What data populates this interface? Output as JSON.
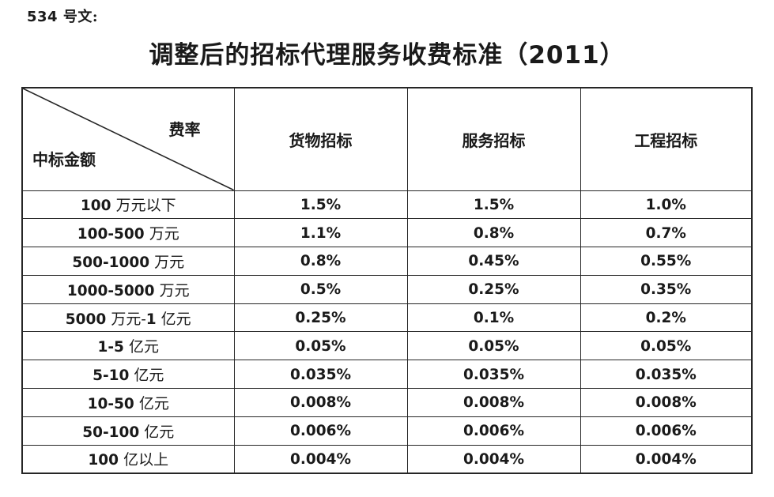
{
  "doc": {
    "doc_number": "534 号文:",
    "title": "调整后的招标代理服务收费标准（2011）"
  },
  "table": {
    "corner": {
      "top_right": "费率",
      "bottom_left": "中标金额"
    },
    "columns": [
      "货物招标",
      "服务招标",
      "工程招标"
    ],
    "rows": [
      {
        "label": "100 万元以下",
        "values": [
          "1.5%",
          "1.5%",
          "1.0%"
        ]
      },
      {
        "label": "100-500 万元",
        "values": [
          "1.1%",
          "0.8%",
          "0.7%"
        ]
      },
      {
        "label": "500-1000 万元",
        "values": [
          "0.8%",
          "0.45%",
          "0.55%"
        ]
      },
      {
        "label": "1000-5000 万元",
        "values": [
          "0.5%",
          "0.25%",
          "0.35%"
        ]
      },
      {
        "label": "5000 万元-1 亿元",
        "values": [
          "0.25%",
          "0.1%",
          "0.2%"
        ]
      },
      {
        "label": "1-5 亿元",
        "values": [
          "0.05%",
          "0.05%",
          "0.05%"
        ]
      },
      {
        "label": "5-10 亿元",
        "values": [
          "0.035%",
          "0.035%",
          "0.035%"
        ]
      },
      {
        "label": "10-50 亿元",
        "values": [
          "0.008%",
          "0.008%",
          "0.008%"
        ]
      },
      {
        "label": "50-100 亿元",
        "values": [
          "0.006%",
          "0.006%",
          "0.006%"
        ]
      },
      {
        "label": "100 亿以上",
        "values": [
          "0.004%",
          "0.004%",
          "0.004%"
        ]
      }
    ]
  },
  "colors": {
    "text": "#1a1a1a",
    "border": "#262626",
    "background": "#ffffff"
  }
}
